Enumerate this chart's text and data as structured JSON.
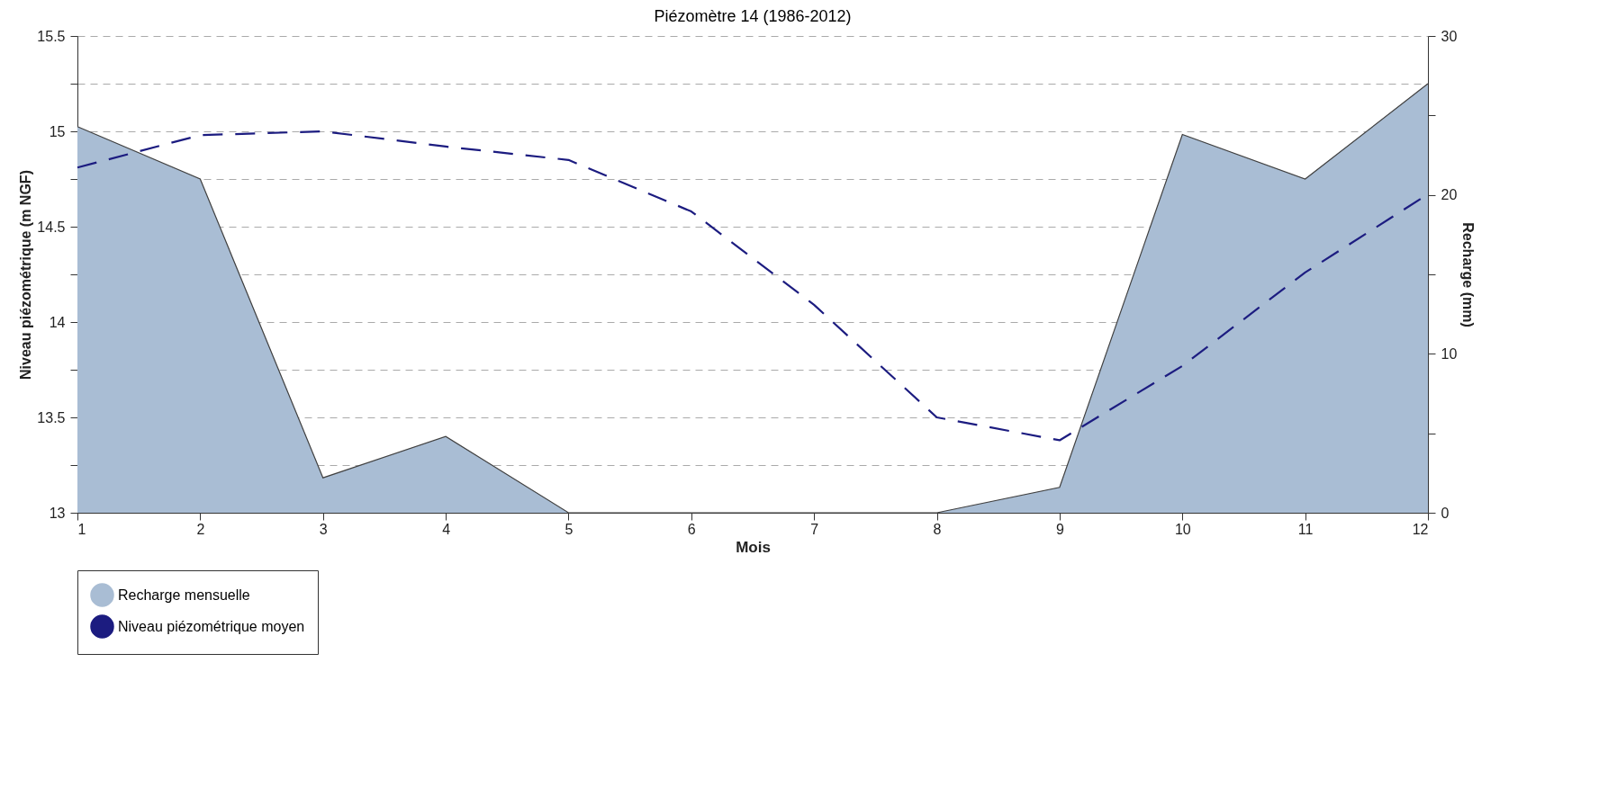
{
  "chart_data": {
    "type": "line",
    "title": "Piézomètre 14 (1986-2012)",
    "xlabel": "Mois",
    "ylabel": "Niveau piézométrique (m NGF)",
    "y2label": "Recharge (mm)",
    "x": [
      1,
      2,
      3,
      4,
      5,
      6,
      7,
      8,
      9,
      10,
      11,
      12
    ],
    "series": [
      {
        "type": "area",
        "axis": "y2",
        "name": "Recharge mensuelle",
        "color": "#a9bdd4",
        "values": [
          24.3,
          21.0,
          2.2,
          4.8,
          0,
          0,
          0,
          0,
          1.6,
          23.8,
          21.0,
          27.0
        ]
      },
      {
        "name": "Niveau piézométrique moyen",
        "color": "#1c1c80",
        "line_style": "dashed",
        "values": [
          14.81,
          14.98,
          15.0,
          14.92,
          14.85,
          14.58,
          14.09,
          13.5,
          13.38,
          13.77,
          14.26,
          14.67
        ]
      }
    ],
    "xlim": [
      1,
      12
    ],
    "xticks": [
      1,
      2,
      3,
      4,
      5,
      6,
      7,
      8,
      9,
      10,
      11,
      12
    ],
    "ylim": [
      13,
      15.5
    ],
    "yticks": [
      13,
      {
        "value": 13.25,
        "label": null
      },
      13.5,
      {
        "value": 13.75,
        "label": null
      },
      14,
      {
        "value": 14.25,
        "label": null
      },
      14.5,
      {
        "value": 14.75,
        "label": null
      },
      15,
      {
        "value": 15.25,
        "label": null
      },
      15.5
    ],
    "y2lim": [
      0,
      30
    ],
    "y2ticks": [
      0,
      {
        "value": 5,
        "label": null
      },
      10,
      {
        "value": 15,
        "label": null
      },
      20,
      {
        "value": 25,
        "label": null
      },
      30
    ],
    "grid": "y",
    "legend": "bottom left"
  }
}
